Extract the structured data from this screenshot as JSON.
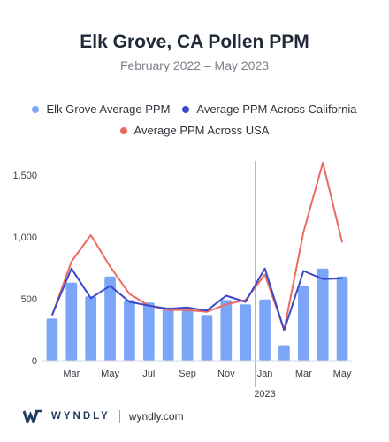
{
  "colors": {
    "bar": "#7ba6f7",
    "california": "#3949c9",
    "usa": "#ec6b60",
    "axis": "#d4d7dc",
    "divider": "#a9adb3"
  },
  "footer": {
    "logo_icon": "wyndly-w-icon",
    "brand": "WYNDLY",
    "site": "wyndly.com"
  },
  "chart_data": {
    "type": "bar",
    "title": "Elk Grove, CA Pollen PPM",
    "subtitle": "February 2022 – May 2023",
    "ylim": [
      0,
      1700
    ],
    "yticks": [
      0,
      500,
      1000,
      1500
    ],
    "ytick_labels": [
      "0",
      "500",
      "1,000",
      "1,500"
    ],
    "grid": false,
    "legend_position": "top",
    "categories": [
      "Feb 2022",
      "Mar 2022",
      "Apr 2022",
      "May 2022",
      "Jun 2022",
      "Jul 2022",
      "Aug 2022",
      "Sep 2022",
      "Oct 2022",
      "Nov 2022",
      "Dec 2022",
      "Jan 2023",
      "Feb 2023",
      "Mar 2023",
      "Apr 2023",
      "May 2023"
    ],
    "xtick_labels": [
      "",
      "Mar",
      "",
      "May",
      "",
      "Jul",
      "",
      "Sep",
      "",
      "Nov",
      "",
      "Jan",
      "",
      "Mar",
      "",
      "May"
    ],
    "year_label": "2023",
    "series": [
      {
        "name": "Elk Grove Average PPM",
        "kind": "bar",
        "values": [
          340,
          630,
          520,
          680,
          490,
          470,
          430,
          420,
          370,
          490,
          455,
          495,
          125,
          600,
          745,
          680
        ]
      },
      {
        "name": "Average PPM Across California",
        "kind": "line",
        "values": [
          370,
          745,
          505,
          605,
          475,
          445,
          420,
          430,
          405,
          525,
          475,
          745,
          245,
          725,
          660,
          665
        ]
      },
      {
        "name": "Average PPM Across USA",
        "kind": "line",
        "values": [
          365,
          800,
          1015,
          760,
          540,
          445,
          410,
          410,
          395,
          455,
          490,
          695,
          250,
          1040,
          1600,
          955
        ]
      }
    ]
  }
}
